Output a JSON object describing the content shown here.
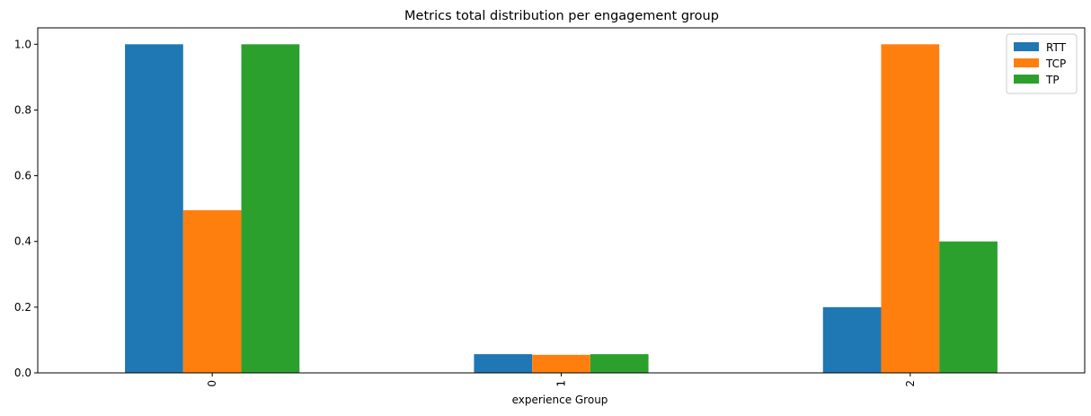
{
  "chart_data": {
    "type": "bar",
    "title": "Metrics total distribution per engagement group",
    "xlabel": "experience Group",
    "ylabel": "",
    "categories": [
      "0",
      "1",
      "2"
    ],
    "series": [
      {
        "name": "RTT",
        "color": "#1f77b4",
        "values": [
          1.0,
          0.057,
          0.2
        ]
      },
      {
        "name": "TCP",
        "color": "#ff7f0e",
        "values": [
          0.495,
          0.055,
          1.0
        ]
      },
      {
        "name": "TP",
        "color": "#2ca02c",
        "values": [
          1.0,
          0.057,
          0.4
        ]
      }
    ],
    "ylim": [
      0,
      1.05
    ],
    "yticks": [
      0.0,
      0.2,
      0.4,
      0.6,
      0.8,
      1.0
    ],
    "ytick_labels": [
      "0.0",
      "0.2",
      "0.4",
      "0.6",
      "0.8",
      "1.0"
    ],
    "grid": false,
    "legend_position": "top-right"
  }
}
